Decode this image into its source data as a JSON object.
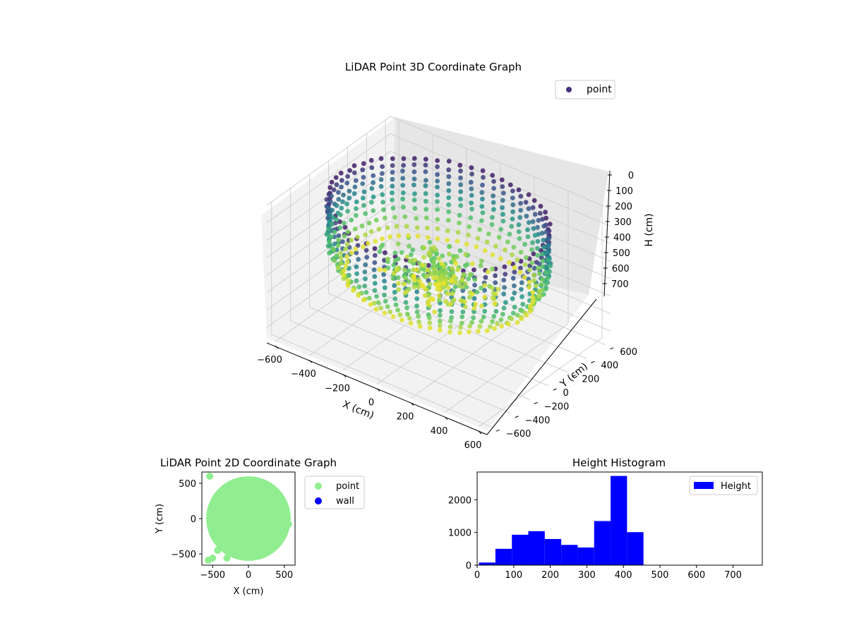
{
  "chart_data": [
    {
      "type": "scatter",
      "title": "LiDAR Point 3D Coordinate Graph",
      "xlabel": "X (cm)",
      "ylabel": "Y (cm)",
      "zlabel": "H (cm)",
      "xlim": [
        -650,
        650
      ],
      "ylim": [
        -650,
        650
      ],
      "zlim": [
        760,
        0
      ],
      "xticks": [
        -600,
        -400,
        -200,
        0,
        200,
        400,
        600
      ],
      "yticks": [
        600,
        400,
        200,
        0,
        -200,
        -400,
        -600
      ],
      "zticks": [
        0,
        100,
        200,
        300,
        400,
        500,
        600,
        700
      ],
      "legend": [
        "point"
      ],
      "legend_position": "top-right",
      "colormap": "viridis",
      "grid": true
    },
    {
      "type": "scatter",
      "title": "LiDAR Point 2D Coordinate Graph",
      "xlabel": "X (cm)",
      "ylabel": "Y (cm)",
      "xlim": [
        -650,
        650
      ],
      "ylim": [
        -660,
        660
      ],
      "xticks": [
        -500,
        0,
        500
      ],
      "yticks": [
        500,
        0,
        -500
      ],
      "series": [
        {
          "name": "point",
          "color": "#90ee90"
        },
        {
          "name": "wall",
          "color": "#0000ff"
        }
      ],
      "legend_position": "outside-right",
      "grid": false
    },
    {
      "type": "bar",
      "title": "Height Histogram",
      "xlim": [
        0,
        780
      ],
      "ylim": [
        0,
        2850
      ],
      "xticks": [
        0,
        100,
        200,
        300,
        400,
        500,
        600,
        700
      ],
      "yticks": [
        0,
        1000,
        2000
      ],
      "bin_edges": [
        5,
        50,
        95,
        140,
        185,
        230,
        275,
        320,
        365,
        410,
        455
      ],
      "values": [
        80,
        500,
        930,
        1040,
        800,
        620,
        540,
        1350,
        2730,
        1010
      ],
      "series": [
        {
          "name": "Height",
          "color": "#0000ff"
        }
      ],
      "legend_position": "top-right",
      "grid": false
    }
  ]
}
